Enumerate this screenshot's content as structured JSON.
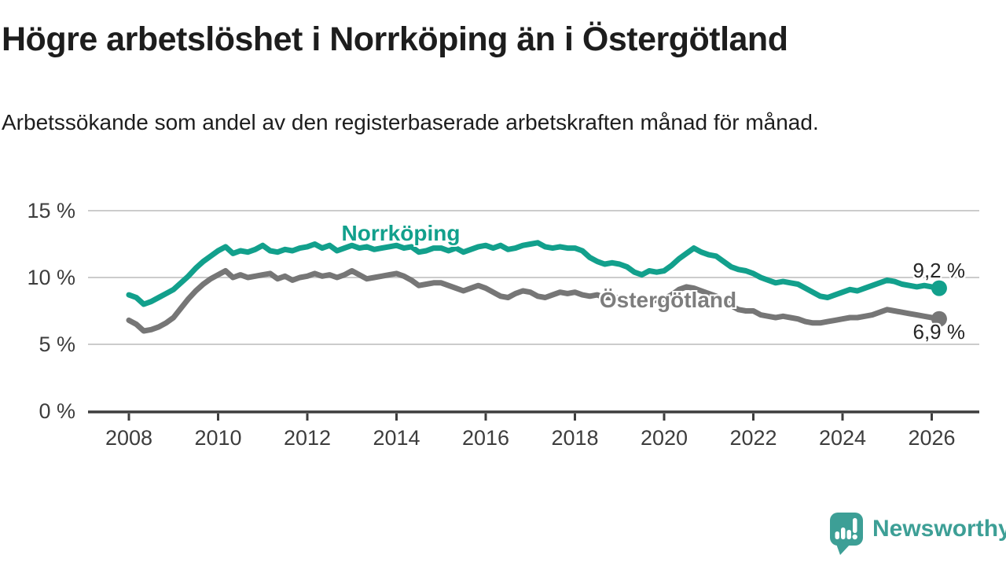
{
  "header": {
    "title": "Högre arbetslöshet i Norrköping än i Östergötland",
    "subtitle": "Arbetssökande som andel av den registerbaserade arbetskraften månad för månad."
  },
  "chart_data": {
    "type": "line",
    "title": "Högre arbetslöshet i Norrköping än i Östergötland",
    "xlabel": "",
    "ylabel": "",
    "ylim": [
      0,
      15
    ],
    "xlim": [
      2008,
      2026.2
    ],
    "grid": true,
    "x_start_year": 2008,
    "x_step_months": 2,
    "x_ticks": [
      {
        "label": "2008",
        "year": 2008
      },
      {
        "label": "2010",
        "year": 2010
      },
      {
        "label": "2012",
        "year": 2012
      },
      {
        "label": "2014",
        "year": 2014
      },
      {
        "label": "2016",
        "year": 2016
      },
      {
        "label": "2018",
        "year": 2018
      },
      {
        "label": "2020",
        "year": 2020
      },
      {
        "label": "2022",
        "year": 2022
      },
      {
        "label": "2024",
        "year": 2024
      },
      {
        "label": "2026",
        "year": 2026
      }
    ],
    "y_ticks": [
      {
        "label": "15 %",
        "value": 15
      },
      {
        "label": "10 %",
        "value": 10
      },
      {
        "label": "5 %",
        "value": 5
      },
      {
        "label": "0 %",
        "value": 0
      }
    ],
    "series": [
      {
        "name": "Norrköping",
        "color": "#12a08c",
        "end_label": "9,2 %",
        "end_value": 9.2,
        "values": [
          8.7,
          8.5,
          8.0,
          8.2,
          8.5,
          8.8,
          9.1,
          9.6,
          10.1,
          10.7,
          11.2,
          11.6,
          12.0,
          12.3,
          11.8,
          12.0,
          11.9,
          12.1,
          12.4,
          12.0,
          11.9,
          12.1,
          12.0,
          12.2,
          12.3,
          12.5,
          12.2,
          12.4,
          12.0,
          12.2,
          12.4,
          12.2,
          12.3,
          12.1,
          12.2,
          12.3,
          12.4,
          12.2,
          12.3,
          11.9,
          12.0,
          12.2,
          12.2,
          12.0,
          12.2,
          11.9,
          12.1,
          12.3,
          12.4,
          12.2,
          12.4,
          12.1,
          12.2,
          12.4,
          12.5,
          12.6,
          12.3,
          12.2,
          12.3,
          12.2,
          12.2,
          12.0,
          11.5,
          11.2,
          11.0,
          11.1,
          11.0,
          10.8,
          10.4,
          10.2,
          10.5,
          10.4,
          10.5,
          10.9,
          11.4,
          11.8,
          12.2,
          11.9,
          11.7,
          11.6,
          11.2,
          10.8,
          10.6,
          10.5,
          10.3,
          10.0,
          9.8,
          9.6,
          9.7,
          9.6,
          9.5,
          9.2,
          8.9,
          8.6,
          8.5,
          8.7,
          8.9,
          9.1,
          9.0,
          9.2,
          9.4,
          9.6,
          9.8,
          9.7,
          9.5,
          9.4,
          9.3,
          9.4,
          9.3,
          9.2
        ]
      },
      {
        "name": "Östergötland",
        "color": "#767676",
        "end_label": "6,9 %",
        "end_value": 6.9,
        "values": [
          6.8,
          6.5,
          6.0,
          6.1,
          6.3,
          6.6,
          7.0,
          7.7,
          8.4,
          9.0,
          9.5,
          9.9,
          10.2,
          10.5,
          10.0,
          10.2,
          10.0,
          10.1,
          10.2,
          10.3,
          9.9,
          10.1,
          9.8,
          10.0,
          10.1,
          10.3,
          10.1,
          10.2,
          10.0,
          10.2,
          10.5,
          10.2,
          9.9,
          10.0,
          10.1,
          10.2,
          10.3,
          10.1,
          9.8,
          9.4,
          9.5,
          9.6,
          9.6,
          9.4,
          9.2,
          9.0,
          9.2,
          9.4,
          9.2,
          8.9,
          8.6,
          8.5,
          8.8,
          9.0,
          8.9,
          8.6,
          8.5,
          8.7,
          8.9,
          8.8,
          8.9,
          8.7,
          8.6,
          8.7,
          8.5,
          8.5,
          8.5,
          8.4,
          8.2,
          8.1,
          8.3,
          8.3,
          8.4,
          8.7,
          9.1,
          9.3,
          9.2,
          9.0,
          8.8,
          8.6,
          8.3,
          7.9,
          7.6,
          7.5,
          7.5,
          7.2,
          7.1,
          7.0,
          7.1,
          7.0,
          6.9,
          6.7,
          6.6,
          6.6,
          6.7,
          6.8,
          6.9,
          7.0,
          7.0,
          7.1,
          7.2,
          7.4,
          7.6,
          7.5,
          7.4,
          7.3,
          7.2,
          7.1,
          7.0,
          6.9
        ]
      }
    ]
  },
  "footer": {
    "brand": "Newsworthy"
  },
  "colors": {
    "norrkoping_line": "#12a08c",
    "ostergotland_line": "#767676",
    "ostergotland_label": "#7d7d7d",
    "grid": "#cccccc",
    "axis": "#3d3d3d",
    "logo_teal": "#3d9f96",
    "text": "#1d1d1d"
  }
}
